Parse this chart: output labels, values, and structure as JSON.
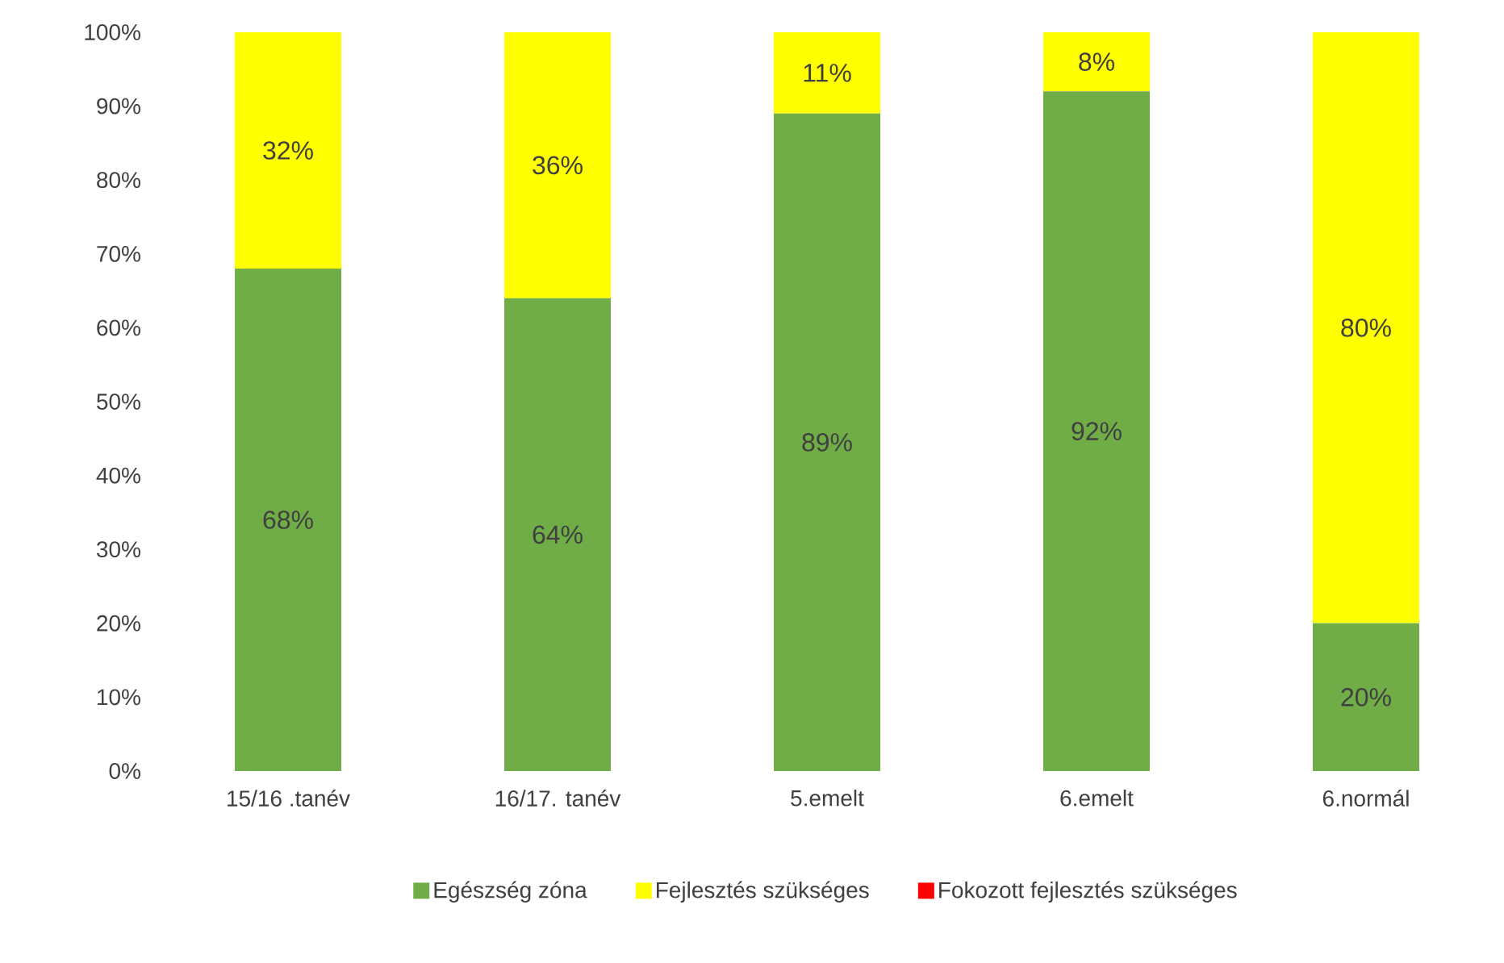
{
  "chart_data": {
    "type": "bar",
    "stacked": true,
    "categories": [
      "15/16 .tanév",
      "16/17. tanév",
      "5.emelt",
      "6.emelt",
      "6.normál"
    ],
    "series": [
      {
        "name": "Egészség zóna",
        "color": "#70ad47",
        "values": [
          68,
          64,
          89,
          92,
          20
        ],
        "value_labels": [
          "68%",
          "64%",
          "89%",
          "92%",
          "20%"
        ]
      },
      {
        "name": "Fejlesztés szükséges",
        "color": "#ffff00",
        "values": [
          32,
          36,
          11,
          8,
          80
        ],
        "value_labels": [
          "32%",
          "36%",
          "11%",
          "8%",
          "80%"
        ]
      },
      {
        "name": "Fokozott fejlesztés szükséges",
        "color": "#ff0000",
        "values": [
          0,
          0,
          0,
          0,
          0
        ],
        "value_labels": [
          null,
          null,
          null,
          null,
          null
        ]
      }
    ],
    "ylim": [
      0,
      100
    ],
    "yticks": [
      {
        "value": 0,
        "label": "0%"
      },
      {
        "value": 10,
        "label": "10%"
      },
      {
        "value": 20,
        "label": "20%"
      },
      {
        "value": 30,
        "label": "30%"
      },
      {
        "value": 40,
        "label": "40%"
      },
      {
        "value": 50,
        "label": "50%"
      },
      {
        "value": 60,
        "label": "60%"
      },
      {
        "value": 70,
        "label": "70%"
      },
      {
        "value": 80,
        "label": "80%"
      },
      {
        "value": 90,
        "label": "90%"
      },
      {
        "value": 100,
        "label": "100%"
      }
    ],
    "legend": "bottom"
  }
}
